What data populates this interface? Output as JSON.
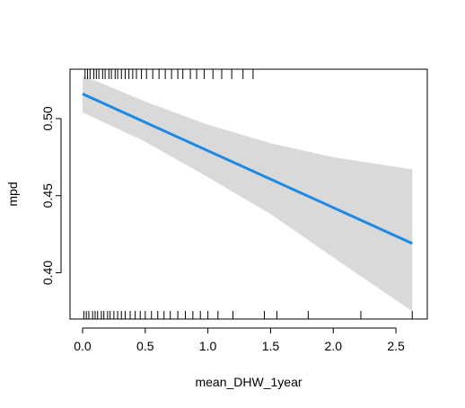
{
  "chart_data": {
    "type": "line",
    "xlabel": "mean_DHW_1year",
    "ylabel": "mpd",
    "xlim": [
      -0.1,
      2.75
    ],
    "ylim": [
      0.37,
      0.532
    ],
    "xticks": [
      0.0,
      0.5,
      1.0,
      1.5,
      2.0,
      2.5
    ],
    "xtick_labels": [
      "0.0",
      "0.5",
      "1.0",
      "1.5",
      "2.0",
      "2.5"
    ],
    "yticks": [
      0.4,
      0.45,
      0.5
    ],
    "ytick_labels": [
      "0.40",
      "0.45",
      "0.50"
    ],
    "grid": false,
    "series": [
      {
        "x": [
          0.0,
          2.63
        ],
        "y": [
          0.516,
          0.419
        ],
        "color": "#1e88e5"
      }
    ],
    "confidence_band": {
      "x": [
        0.0,
        0.5,
        1.0,
        1.5,
        2.0,
        2.63
      ],
      "upper": [
        0.528,
        0.511,
        0.496,
        0.484,
        0.475,
        0.467
      ],
      "lower": [
        0.504,
        0.485,
        0.462,
        0.438,
        0.41,
        0.375
      ],
      "color": "#d9d9d9"
    },
    "rug_top": [
      0.02,
      0.04,
      0.06,
      0.09,
      0.11,
      0.13,
      0.16,
      0.18,
      0.21,
      0.23,
      0.26,
      0.28,
      0.31,
      0.34,
      0.37,
      0.4,
      0.43,
      0.47,
      0.51,
      0.56,
      0.61,
      0.66,
      0.71,
      0.76,
      0.8,
      0.86,
      0.91,
      0.97,
      1.04,
      1.11,
      1.19,
      1.28,
      1.36
    ],
    "rug_bottom": [
      0.01,
      0.03,
      0.05,
      0.08,
      0.1,
      0.12,
      0.15,
      0.17,
      0.2,
      0.22,
      0.25,
      0.28,
      0.31,
      0.34,
      0.38,
      0.42,
      0.46,
      0.5,
      0.55,
      0.6,
      0.65,
      0.7,
      0.76,
      0.82,
      0.88,
      0.94,
      1.0,
      1.08,
      1.2,
      1.45,
      1.55,
      1.8,
      2.22,
      2.63
    ]
  }
}
